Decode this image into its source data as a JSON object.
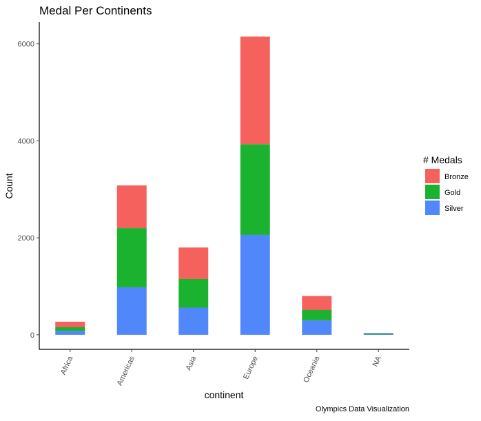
{
  "chart_data": {
    "type": "bar",
    "stacked": true,
    "title": "Medal Per Continents",
    "xlabel": "continent",
    "ylabel": "Count",
    "caption": "Olympics Data Visualization",
    "categories": [
      "Africa",
      "Americas",
      "Asia",
      "Europe",
      "Oceania",
      "NA"
    ],
    "yticks": [
      0,
      2000,
      4000,
      6000
    ],
    "ylim": [
      -300,
      6450
    ],
    "grid": false,
    "legend": {
      "title": "# Medals",
      "position": "right"
    },
    "series": [
      {
        "name": "Silver",
        "color": "#5087FB",
        "values": [
          80,
          980,
          560,
          2060,
          300,
          12
        ]
      },
      {
        "name": "Gold",
        "color": "#1AB22F",
        "values": [
          75,
          1220,
          590,
          1870,
          210,
          12
        ]
      },
      {
        "name": "Bronze",
        "color": "#F5615D",
        "values": [
          115,
          880,
          650,
          2220,
          290,
          12
        ]
      }
    ],
    "legend_order": [
      "Bronze",
      "Gold",
      "Silver"
    ],
    "na_bar_color": "#3A8C8C"
  }
}
